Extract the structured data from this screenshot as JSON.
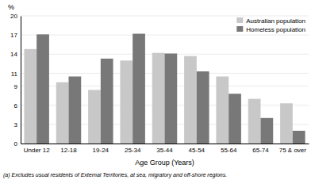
{
  "chart_data": {
    "type": "bar",
    "categories": [
      "Under 12",
      "12-18",
      "19-24",
      "25-34",
      "35-44",
      "45-54",
      "55-64",
      "65-74",
      "75 & over"
    ],
    "series": [
      {
        "name": "Australian population",
        "color": "#c8c8c8",
        "values": [
          14.8,
          9.6,
          8.4,
          13.0,
          14.2,
          13.7,
          10.5,
          7.0,
          6.3
        ]
      },
      {
        "name": "Homeless population",
        "color": "#787878",
        "values": [
          17.1,
          10.5,
          13.3,
          17.2,
          14.1,
          11.3,
          7.8,
          4.0,
          2.0
        ]
      }
    ],
    "xlabel": "Age Group (Years)",
    "ylabel": "%",
    "annotations": [
      "(a) Excludes usual residents of External Territories, at sea, migratory and off-shore regions."
    ],
    "ylim": [
      0,
      20
    ],
    "yticks": [
      0,
      3,
      6,
      9,
      11,
      14,
      17,
      20
    ],
    "grid": true,
    "legend": "upper-right"
  }
}
